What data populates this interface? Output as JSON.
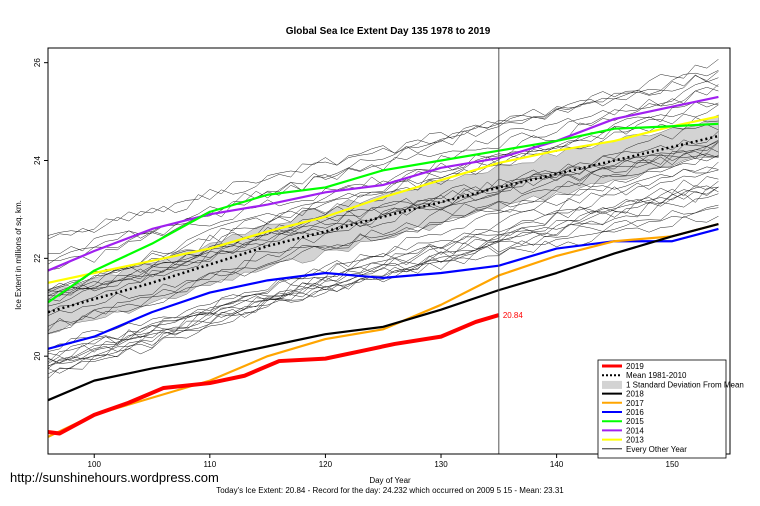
{
  "watermark": "http://sunshinehours.wordpress.com",
  "footer": "Today's Ice Extent: 20.84 - Record for the day: 24.232 which occurred on 2009 5 15 - Mean: 23.31",
  "chart_data": {
    "type": "line",
    "title": "Global Sea Ice Extent Day 135 1978 to 2019",
    "xlabel": "Day of Year",
    "ylabel": "Ice Extent in millions of sq. km.",
    "xlim": [
      96,
      155
    ],
    "ylim": [
      18.0,
      26.3
    ],
    "xticks": [
      100,
      110,
      120,
      130,
      140,
      150
    ],
    "yticks": [
      20,
      22,
      24,
      26
    ],
    "grid": false,
    "vertical_marker_day": 135,
    "end_label": "20.84",
    "legend": {
      "position": "bottom-right",
      "entries": [
        {
          "label": "2019",
          "color": "#ff0000",
          "style": "thick"
        },
        {
          "label": "Mean 1981-2010",
          "color": "#000000",
          "style": "dotted"
        },
        {
          "label": "1 Standard Deviation From Mean",
          "color": "#d3d3d3",
          "style": "band"
        },
        {
          "label": "2018",
          "color": "#000000",
          "style": "solid"
        },
        {
          "label": "2017",
          "color": "#ffa500",
          "style": "solid"
        },
        {
          "label": "2016",
          "color": "#0000ff",
          "style": "solid"
        },
        {
          "label": "2015",
          "color": "#00ff00",
          "style": "solid"
        },
        {
          "label": "2014",
          "color": "#a020f0",
          "style": "solid"
        },
        {
          "label": "2013",
          "color": "#ffff00",
          "style": "solid"
        },
        {
          "label": "Every Other Year",
          "color": "#000000",
          "style": "thin"
        }
      ]
    },
    "mean_band": {
      "x": [
        96,
        105,
        115,
        125,
        135,
        145,
        154
      ],
      "mean": [
        20.9,
        21.5,
        22.25,
        22.85,
        23.45,
        24.0,
        24.5
      ],
      "sd": [
        0.45,
        0.42,
        0.45,
        0.45,
        0.42,
        0.4,
        0.4
      ]
    },
    "series": [
      {
        "name": "2019",
        "color": "#ff0000",
        "x": [
          96,
          97,
          100,
          103,
          106,
          110,
          113,
          116,
          120,
          123,
          126,
          130,
          133,
          135
        ],
        "y": [
          18.45,
          18.42,
          18.8,
          19.05,
          19.35,
          19.45,
          19.6,
          19.9,
          19.95,
          20.1,
          20.25,
          20.4,
          20.7,
          20.84
        ]
      },
      {
        "name": "2018",
        "color": "#000000",
        "x": [
          96,
          100,
          105,
          110,
          115,
          120,
          125,
          130,
          135,
          140,
          145,
          150,
          154
        ],
        "y": [
          19.1,
          19.5,
          19.75,
          19.95,
          20.2,
          20.45,
          20.6,
          20.95,
          21.35,
          21.7,
          22.1,
          22.45,
          22.7
        ]
      },
      {
        "name": "2017",
        "color": "#ffa500",
        "x": [
          96,
          100,
          105,
          110,
          115,
          120,
          125,
          130,
          135,
          140,
          145,
          150,
          154
        ],
        "y": [
          18.35,
          18.8,
          19.15,
          19.5,
          20.0,
          20.35,
          20.55,
          21.05,
          21.65,
          22.05,
          22.35,
          22.45,
          22.7
        ]
      },
      {
        "name": "2016",
        "color": "#0000ff",
        "x": [
          96,
          100,
          105,
          110,
          115,
          120,
          125,
          130,
          135,
          140,
          145,
          150,
          154
        ],
        "y": [
          20.15,
          20.4,
          20.9,
          21.3,
          21.55,
          21.7,
          21.6,
          21.7,
          21.85,
          22.2,
          22.35,
          22.35,
          22.6
        ]
      },
      {
        "name": "2015",
        "color": "#00ff00",
        "x": [
          96,
          100,
          105,
          110,
          115,
          120,
          125,
          130,
          135,
          140,
          145,
          150,
          154
        ],
        "y": [
          21.1,
          21.75,
          22.3,
          22.95,
          23.3,
          23.45,
          23.8,
          24.0,
          24.2,
          24.4,
          24.65,
          24.7,
          24.75
        ]
      },
      {
        "name": "2014",
        "color": "#a020f0",
        "x": [
          96,
          100,
          105,
          110,
          115,
          120,
          125,
          130,
          135,
          140,
          145,
          150,
          154
        ],
        "y": [
          21.75,
          22.15,
          22.6,
          22.9,
          23.1,
          23.35,
          23.5,
          23.85,
          24.05,
          24.4,
          24.85,
          25.1,
          25.3
        ]
      },
      {
        "name": "2013",
        "color": "#ffff00",
        "x": [
          96,
          100,
          105,
          110,
          115,
          120,
          125,
          130,
          135,
          140,
          145,
          150,
          154
        ],
        "y": [
          21.5,
          21.7,
          21.95,
          22.2,
          22.55,
          22.85,
          23.25,
          23.6,
          23.95,
          24.2,
          24.4,
          24.7,
          24.9
        ]
      }
    ]
  }
}
